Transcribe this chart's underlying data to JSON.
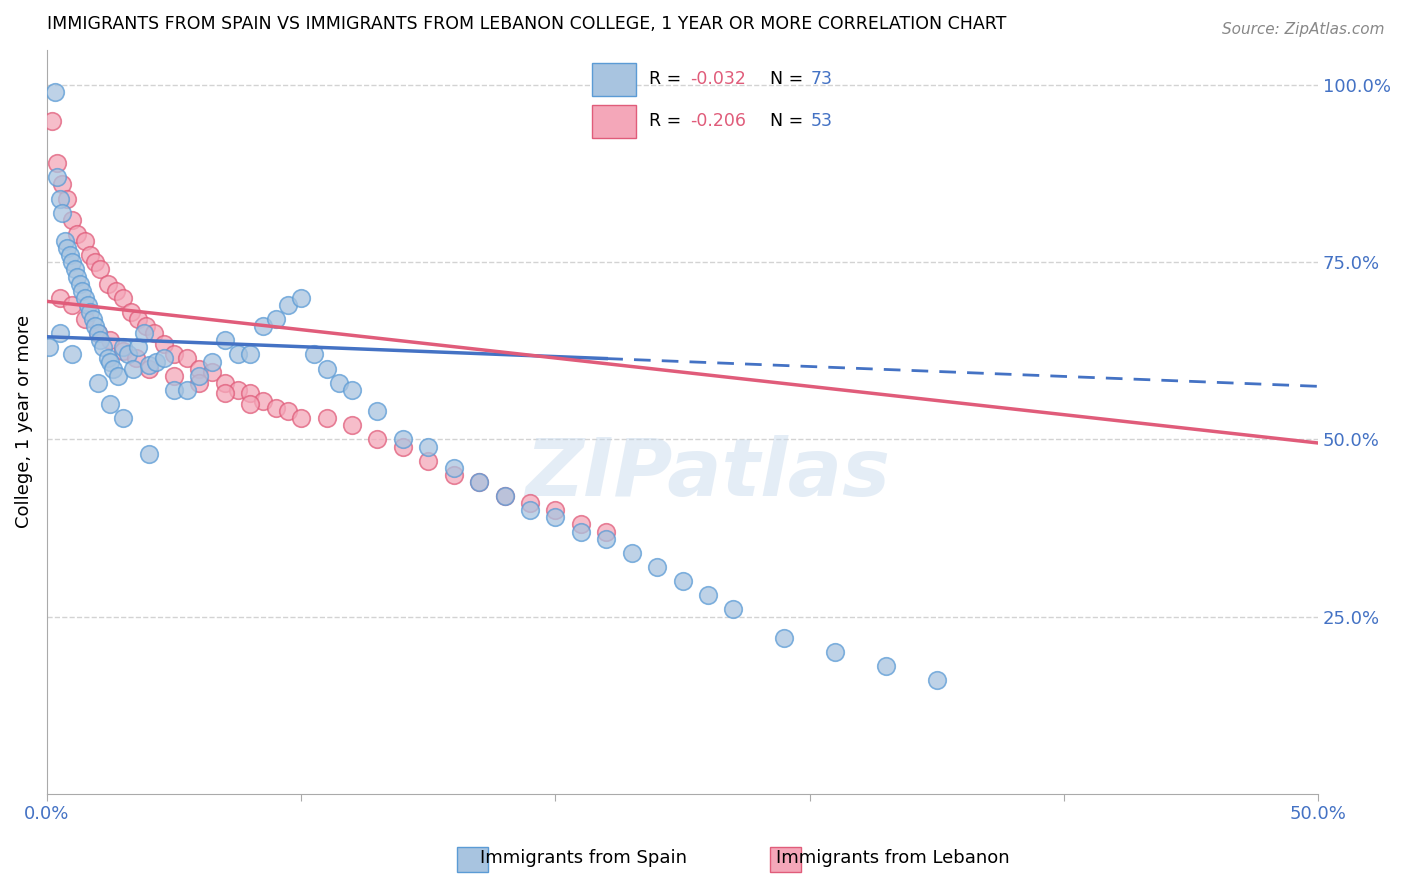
{
  "title": "IMMIGRANTS FROM SPAIN VS IMMIGRANTS FROM LEBANON COLLEGE, 1 YEAR OR MORE CORRELATION CHART",
  "source": "Source: ZipAtlas.com",
  "ylabel": "College, 1 year or more",
  "x_min": 0.0,
  "x_max": 0.5,
  "y_min": 0.0,
  "y_max": 1.05,
  "spain_R": -0.032,
  "spain_N": 73,
  "lebanon_R": -0.206,
  "lebanon_N": 53,
  "spain_color": "#a8c4e0",
  "spain_color_dark": "#5b9bd5",
  "lebanon_color": "#f4a7b9",
  "lebanon_color_dark": "#e05c7a",
  "spain_line_color": "#4472c4",
  "lebanon_line_color": "#e05c7a",
  "background_color": "#ffffff",
  "grid_color": "#d3d3d3",
  "watermark": "ZIPatlas",
  "spain_line_y0": 0.645,
  "spain_line_y1": 0.575,
  "spain_line_solid_end": 0.22,
  "lebanon_line_y0": 0.695,
  "lebanon_line_y1": 0.495,
  "spain_scatter_x": [
    0.001,
    0.003,
    0.004,
    0.005,
    0.006,
    0.007,
    0.008,
    0.009,
    0.01,
    0.011,
    0.012,
    0.013,
    0.014,
    0.015,
    0.016,
    0.017,
    0.018,
    0.019,
    0.02,
    0.021,
    0.022,
    0.024,
    0.025,
    0.026,
    0.028,
    0.03,
    0.032,
    0.034,
    0.036,
    0.038,
    0.04,
    0.043,
    0.046,
    0.05,
    0.055,
    0.06,
    0.065,
    0.07,
    0.075,
    0.08,
    0.085,
    0.09,
    0.095,
    0.1,
    0.105,
    0.11,
    0.115,
    0.12,
    0.13,
    0.14,
    0.15,
    0.16,
    0.17,
    0.18,
    0.19,
    0.2,
    0.21,
    0.22,
    0.23,
    0.24,
    0.25,
    0.26,
    0.27,
    0.29,
    0.31,
    0.33,
    0.35,
    0.005,
    0.01,
    0.02,
    0.025,
    0.03,
    0.04
  ],
  "spain_scatter_y": [
    0.63,
    0.99,
    0.87,
    0.84,
    0.82,
    0.78,
    0.77,
    0.76,
    0.75,
    0.74,
    0.73,
    0.72,
    0.71,
    0.7,
    0.69,
    0.68,
    0.67,
    0.66,
    0.65,
    0.64,
    0.63,
    0.615,
    0.61,
    0.6,
    0.59,
    0.63,
    0.62,
    0.6,
    0.63,
    0.65,
    0.605,
    0.61,
    0.615,
    0.57,
    0.57,
    0.59,
    0.61,
    0.64,
    0.62,
    0.62,
    0.66,
    0.67,
    0.69,
    0.7,
    0.62,
    0.6,
    0.58,
    0.57,
    0.54,
    0.5,
    0.49,
    0.46,
    0.44,
    0.42,
    0.4,
    0.39,
    0.37,
    0.36,
    0.34,
    0.32,
    0.3,
    0.28,
    0.26,
    0.22,
    0.2,
    0.18,
    0.16,
    0.65,
    0.62,
    0.58,
    0.55,
    0.53,
    0.48
  ],
  "lebanon_scatter_x": [
    0.002,
    0.004,
    0.006,
    0.008,
    0.01,
    0.012,
    0.015,
    0.017,
    0.019,
    0.021,
    0.024,
    0.027,
    0.03,
    0.033,
    0.036,
    0.039,
    0.042,
    0.046,
    0.05,
    0.055,
    0.06,
    0.065,
    0.07,
    0.075,
    0.08,
    0.085,
    0.09,
    0.095,
    0.1,
    0.11,
    0.12,
    0.13,
    0.14,
    0.15,
    0.16,
    0.17,
    0.18,
    0.19,
    0.2,
    0.21,
    0.22,
    0.005,
    0.01,
    0.015,
    0.02,
    0.025,
    0.03,
    0.035,
    0.04,
    0.05,
    0.06,
    0.07,
    0.08
  ],
  "lebanon_scatter_y": [
    0.95,
    0.89,
    0.86,
    0.84,
    0.81,
    0.79,
    0.78,
    0.76,
    0.75,
    0.74,
    0.72,
    0.71,
    0.7,
    0.68,
    0.67,
    0.66,
    0.65,
    0.635,
    0.62,
    0.615,
    0.6,
    0.595,
    0.58,
    0.57,
    0.565,
    0.555,
    0.545,
    0.54,
    0.53,
    0.53,
    0.52,
    0.5,
    0.49,
    0.47,
    0.45,
    0.44,
    0.42,
    0.41,
    0.4,
    0.38,
    0.37,
    0.7,
    0.69,
    0.67,
    0.65,
    0.64,
    0.625,
    0.615,
    0.6,
    0.59,
    0.58,
    0.565,
    0.55
  ]
}
